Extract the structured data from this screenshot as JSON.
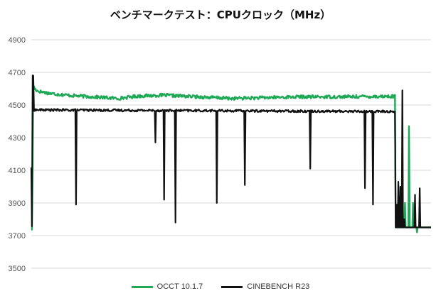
{
  "chart_data": {
    "type": "line",
    "title": "ベンチマークテスト：CPUクロック（MHz）",
    "xlabel": "",
    "ylabel": "",
    "ylim": [
      3500,
      4900
    ],
    "yticks": [
      3500,
      3700,
      3900,
      4100,
      4300,
      4500,
      4700,
      4900
    ],
    "x_count": 600,
    "grid": true,
    "legend_position": "bottom",
    "series": [
      {
        "name": "OCCT 10.1.7",
        "color": "#1fa856",
        "baseline": [
          [
            0,
            3740
          ],
          [
            1,
            3730
          ],
          [
            3,
            4620
          ],
          [
            5,
            4600
          ],
          [
            10,
            4585
          ],
          [
            30,
            4570
          ],
          [
            60,
            4558
          ],
          [
            100,
            4548
          ],
          [
            130,
            4540
          ],
          [
            160,
            4555
          ],
          [
            200,
            4560
          ],
          [
            250,
            4550
          ],
          [
            300,
            4540
          ],
          [
            350,
            4545
          ],
          [
            400,
            4550
          ],
          [
            450,
            4550
          ],
          [
            500,
            4552
          ],
          [
            545,
            4553
          ],
          [
            546,
            3750
          ],
          [
            595,
            3750
          ]
        ],
        "noise": 10,
        "spikes": [
          [
            560,
            3900
          ],
          [
            566,
            4370
          ],
          [
            572,
            3900
          ],
          [
            578,
            3720
          ]
        ]
      },
      {
        "name": "CINEBENCH R23",
        "color": "#111111",
        "baseline": [
          [
            0,
            4120
          ],
          [
            1,
            3750
          ],
          [
            2,
            4680
          ],
          [
            4,
            4470
          ],
          [
            545,
            4460
          ],
          [
            546,
            3750
          ],
          [
            595,
            3750
          ]
        ],
        "noise": 7,
        "spikes": [
          [
            3,
            4680
          ],
          [
            67,
            3890
          ],
          [
            186,
            4270
          ],
          [
            199,
            3920
          ],
          [
            216,
            3780
          ],
          [
            278,
            3900
          ],
          [
            320,
            4010
          ],
          [
            418,
            4110
          ],
          [
            500,
            3990
          ],
          [
            512,
            3890
          ],
          [
            556,
            4590
          ],
          [
            548,
            3890
          ],
          [
            550,
            4030
          ],
          [
            553,
            4000
          ],
          [
            559,
            3800
          ],
          [
            575,
            3950
          ],
          [
            582,
            3990
          ]
        ]
      }
    ]
  }
}
